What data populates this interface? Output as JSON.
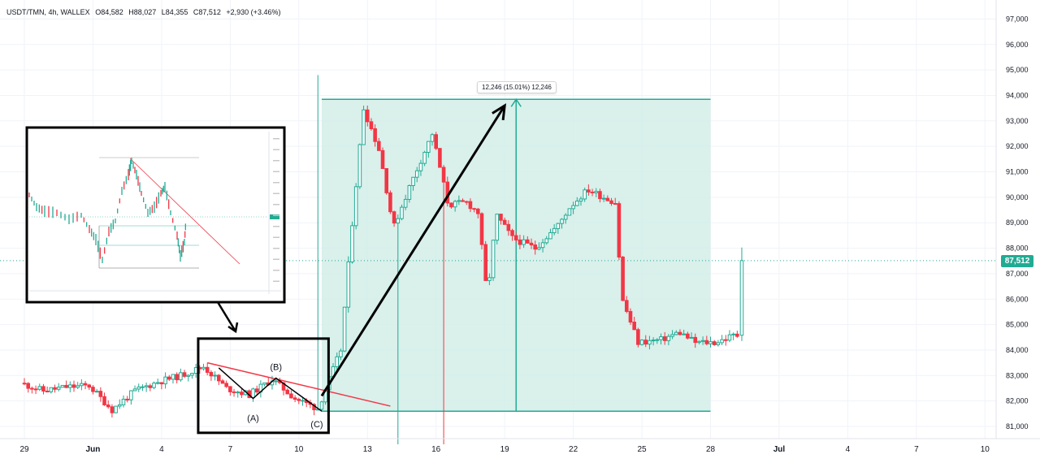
{
  "header": {
    "symbol": "USDT/TMN, 4h, WALLEX",
    "open": "O84,582",
    "high": "H88,027",
    "low": "L84,355",
    "close": "C87,512",
    "change": "+2,930 (+3.46%)"
  },
  "measure": {
    "label": "12,246 (15.01%) 12,246"
  },
  "last_price": "87,512",
  "annotations": {
    "wave_a": "(A)",
    "wave_b": "(B)",
    "wave_c": "(C)"
  },
  "colors": {
    "up": "#22ab94",
    "down": "#f23645",
    "target_zone": "#d2ede7",
    "target_border": "#22ab94",
    "trendline": "#f23645",
    "arrow": "#000000",
    "grid": "#f0f3fa"
  },
  "chart_data": {
    "type": "candlestick",
    "title": "USDT/TMN, 4h, WALLEX",
    "xlabel": "",
    "ylabel": "",
    "x_ticks": [
      "29",
      "Jun",
      "4",
      "7",
      "10",
      "13",
      "16",
      "19",
      "22",
      "25",
      "28",
      "Jul",
      "4",
      "7",
      "10"
    ],
    "y_ticks": [
      "81,000",
      "82,000",
      "83,000",
      "84,000",
      "85,000",
      "86,000",
      "87,000",
      "88,000",
      "89,000",
      "90,000",
      "91,000",
      "92,000",
      "93,000",
      "94,000",
      "95,000",
      "96,000",
      "97,000"
    ],
    "ylim": [
      80500,
      97400
    ],
    "last_price": 87512,
    "measure": {
      "low": 81600,
      "high": 93846,
      "change": 12246,
      "percent": 15.01
    },
    "target_zone": {
      "from": "11 Jun",
      "to": "28 Jun",
      "low": 81600,
      "high": 93846
    },
    "trendline": {
      "from": {
        "date": "6 Jun",
        "price": 83500
      },
      "to": {
        "date": "14 Jun",
        "price": 81800
      }
    },
    "arrow": {
      "from": {
        "date": "11 Jun",
        "price": 82200
      },
      "to": {
        "date": "19 Jun",
        "price": 93600
      }
    },
    "waves": [
      {
        "label": "(A)",
        "date": "8 Jun",
        "price": 82100
      },
      {
        "label": "(B)",
        "date": "9 Jun",
        "price": 82900
      },
      {
        "label": "(C)",
        "date": "11 Jun",
        "price": 81600
      }
    ],
    "anchors": [
      [
        "29 May",
        82700
      ],
      [
        "30 May",
        82400
      ],
      [
        "31 May",
        82550
      ],
      [
        "1 Jun",
        82600
      ],
      [
        "2 Jun",
        81650
      ],
      [
        "3 Jun",
        82400
      ],
      [
        "4 Jun",
        82750
      ],
      [
        "5 Jun",
        83000
      ],
      [
        "6 Jun",
        83350
      ],
      [
        "7 Jun",
        82500
      ],
      [
        "8 Jun",
        82250
      ],
      [
        "9 Jun",
        82850
      ],
      [
        "10 Jun",
        82100
      ],
      [
        "11 Jun",
        81700
      ],
      [
        "12 Jun",
        84000
      ],
      [
        "12.5 Jun",
        89000
      ],
      [
        "13 Jun",
        93500
      ],
      [
        "13.7 Jun",
        91800
      ],
      [
        "14.3 Jun",
        88800
      ],
      [
        "15 Jun",
        90400
      ],
      [
        "16 Jun",
        92500
      ],
      [
        "16.7 Jun",
        89700
      ],
      [
        "17.5 Jun",
        89800
      ],
      [
        "18 Jun",
        89400
      ],
      [
        "18.4 Jun",
        86100
      ],
      [
        "18.8 Jun",
        89300
      ],
      [
        "19.5 Jun",
        88400
      ],
      [
        "20.5 Jun",
        88000
      ],
      [
        "21.5 Jun",
        88900
      ],
      [
        "22 Jun",
        89600
      ],
      [
        "22.8 Jun",
        90300
      ],
      [
        "23.5 Jun",
        90000
      ],
      [
        "24 Jun",
        89800
      ],
      [
        "24.3 Jun",
        86000
      ],
      [
        "25 Jun",
        84300
      ],
      [
        "26 Jun",
        84400
      ],
      [
        "26.8 Jun",
        84700
      ],
      [
        "27.5 Jun",
        84300
      ],
      [
        "28.4 Jun",
        84300
      ],
      [
        "29.2 Jun",
        84582
      ]
    ],
    "last_candle": {
      "open": 84582,
      "high": 88027,
      "low": 84355,
      "close": 87512
    }
  }
}
